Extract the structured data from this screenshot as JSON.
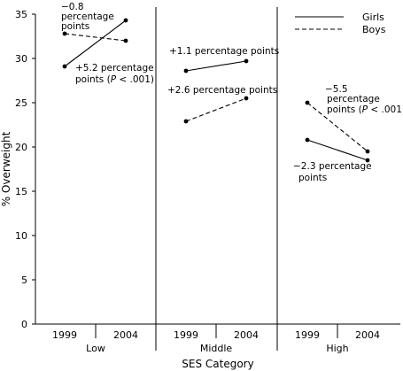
{
  "chart_data": {
    "type": "line",
    "ylabel": "% Overweight",
    "xlabel": "SES Category",
    "ylim": [
      0,
      35
    ],
    "yticks": [
      "0",
      "5",
      "10",
      "15",
      "20",
      "25",
      "30",
      "35"
    ],
    "grid": false,
    "legend_position": "top-right",
    "legend": [
      {
        "name": "Girls",
        "style": "solid"
      },
      {
        "name": "Boys",
        "style": "dashed"
      }
    ],
    "panels": [
      {
        "category": "Low",
        "x": [
          "1999",
          "2004"
        ],
        "series": [
          {
            "name": "Girls",
            "values": [
              29.1,
              34.3
            ]
          },
          {
            "name": "Boys",
            "values": [
              32.8,
              32.0
            ]
          }
        ],
        "annotations": [
          {
            "id": "boys",
            "lines": [
              "−0.8",
              "percentage",
              "points"
            ]
          },
          {
            "id": "girls",
            "lines": [
              "+5.2 percentage",
              "points (",
              "P",
              " < .001)"
            ]
          }
        ]
      },
      {
        "category": "Middle",
        "x": [
          "1999",
          "2004"
        ],
        "series": [
          {
            "name": "Girls",
            "values": [
              28.6,
              29.7
            ]
          },
          {
            "name": "Boys",
            "values": [
              22.9,
              25.5
            ]
          }
        ],
        "annotations": [
          {
            "id": "girls",
            "lines": [
              "+1.1  percentage points"
            ]
          },
          {
            "id": "boys",
            "lines": [
              "+2.6  percentage points"
            ]
          }
        ]
      },
      {
        "category": "High",
        "x": [
          "1999",
          "2004"
        ],
        "series": [
          {
            "name": "Girls",
            "values": [
              20.8,
              18.5
            ]
          },
          {
            "name": "Boys",
            "values": [
              25.0,
              19.5
            ]
          }
        ],
        "annotations": [
          {
            "id": "boys",
            "lines": [
              "−5.5",
              "percentage",
              "points (",
              "P",
              " < .001)"
            ]
          },
          {
            "id": "girls",
            "lines": [
              "−2.3 percentage",
              "points"
            ]
          }
        ]
      }
    ]
  }
}
